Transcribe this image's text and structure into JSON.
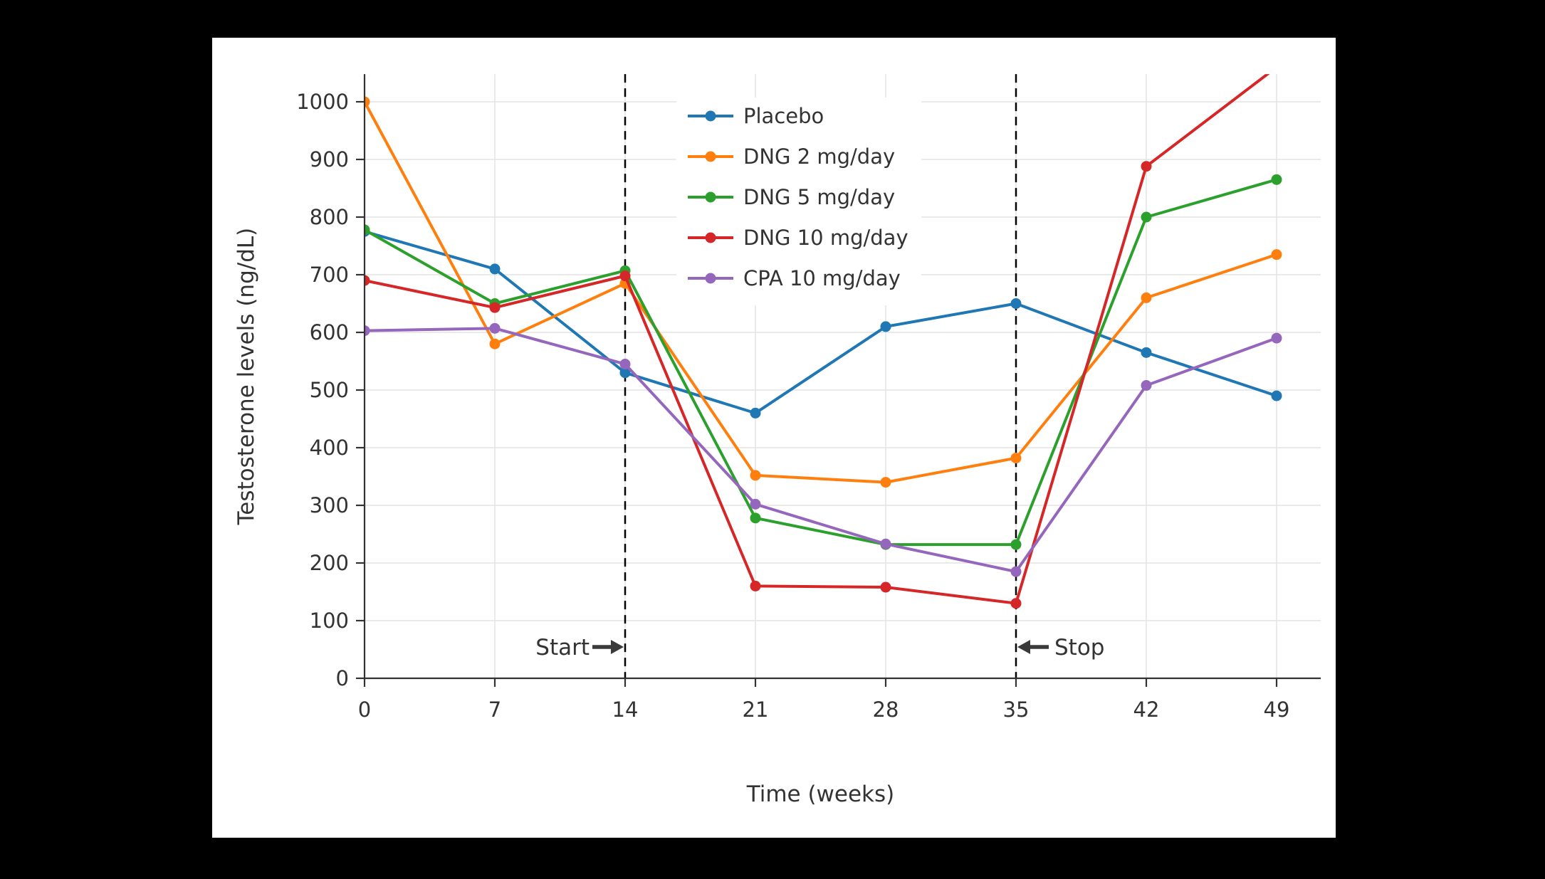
{
  "page": {
    "background": "#000000",
    "card_background": "#ffffff"
  },
  "chart_data": {
    "type": "line",
    "title": "",
    "xlabel": "Time (weeks)",
    "ylabel": "Testosterone levels (ng/dL)",
    "x": [
      0,
      7,
      14,
      21,
      28,
      35,
      42,
      49
    ],
    "xticks": [
      0,
      7,
      14,
      21,
      28,
      35,
      42,
      49
    ],
    "yticks": [
      0,
      100,
      200,
      300,
      400,
      500,
      600,
      700,
      800,
      900,
      1000
    ],
    "xlim": [
      0,
      49
    ],
    "ylim": [
      0,
      1048
    ],
    "grid": true,
    "grid_color": "#e3e3e3",
    "axis_color": "#333333",
    "text_color": "#333333",
    "annotation_color": "#3a3a3a",
    "legend_position": "inside-top-center",
    "series": [
      {
        "name": "Placebo",
        "color": "#1f77b4",
        "values": [
          775,
          710,
          530,
          460,
          610,
          650,
          565,
          490
        ]
      },
      {
        "name": "DNG 2 mg/day",
        "color": "#ff7f0e",
        "values": [
          1000,
          580,
          685,
          352,
          340,
          382,
          660,
          735
        ]
      },
      {
        "name": "DNG 5 mg/day",
        "color": "#2ca02c",
        "values": [
          778,
          650,
          707,
          278,
          232,
          232,
          800,
          865
        ]
      },
      {
        "name": "DNG 10 mg/day",
        "color": "#d62728",
        "values": [
          690,
          643,
          698,
          160,
          158,
          130,
          888,
          1060
        ]
      },
      {
        "name": "CPA 10 mg/day",
        "color": "#9467bd",
        "values": [
          603,
          607,
          545,
          302,
          233,
          185,
          508,
          590
        ]
      }
    ],
    "vlines": [
      {
        "x": 14,
        "style": "dashed",
        "color": "#000000",
        "label": "Start",
        "arrow": "right"
      },
      {
        "x": 35,
        "style": "dashed",
        "color": "#000000",
        "label": "Stop",
        "arrow": "left"
      }
    ]
  }
}
